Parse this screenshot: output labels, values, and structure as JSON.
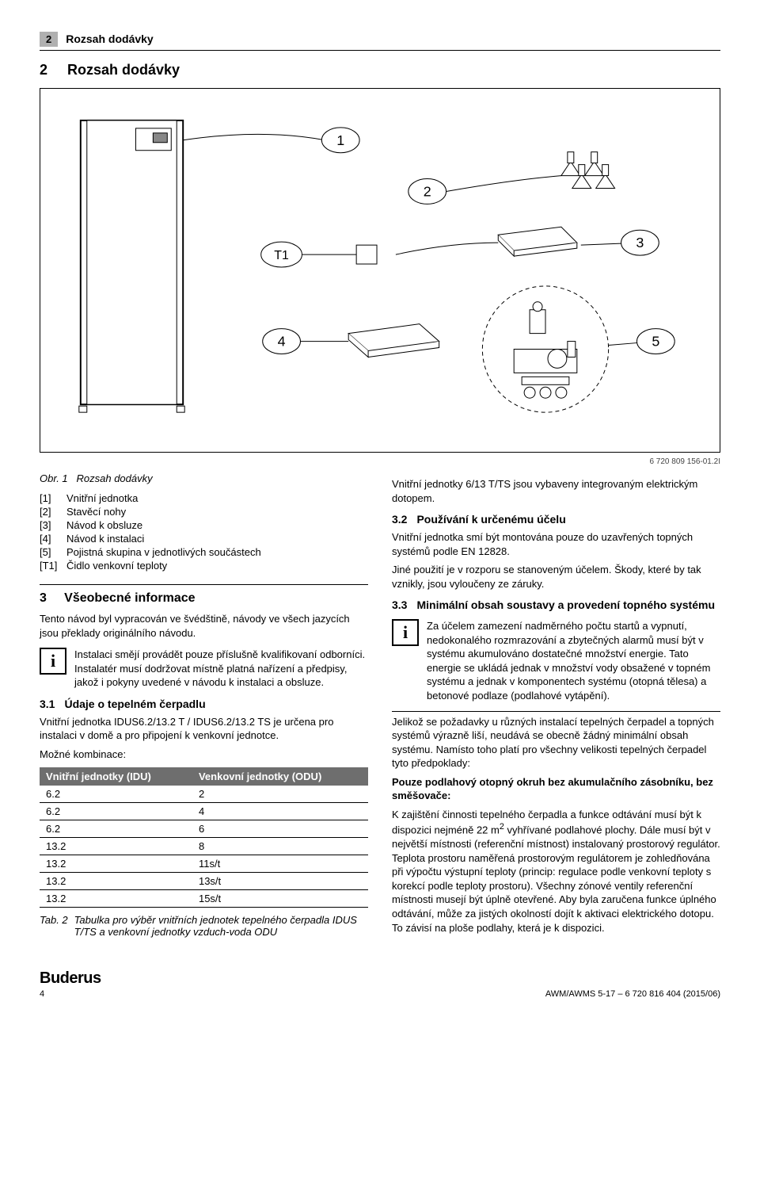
{
  "header": {
    "page_num": "2",
    "title": "Rozsah dodávky"
  },
  "section2": {
    "num": "2",
    "title": "Rozsah dodávky"
  },
  "figure": {
    "callouts": [
      "1",
      "2",
      "3",
      "4",
      "5"
    ],
    "tag": "T1",
    "ref": "6 720 809 156-01.2I",
    "caption_num": "Obr. 1",
    "caption": "Rozsah dodávky"
  },
  "legend": [
    {
      "k": "[1]",
      "v": "Vnitřní jednotka"
    },
    {
      "k": "[2]",
      "v": "Stavěcí nohy"
    },
    {
      "k": "[3]",
      "v": "Návod k obsluze"
    },
    {
      "k": "[4]",
      "v": "Návod k instalaci"
    },
    {
      "k": "[5]",
      "v": "Pojistná skupina v jednotlivých součástech"
    },
    {
      "k": "[T1]",
      "v": "Čidlo venkovní teploty"
    }
  ],
  "section3": {
    "num": "3",
    "title": "Všeobecné informace",
    "intro": "Tento návod byl vypracován ve švédštině, návody ve všech jazycích jsou překlady originálního návodu.",
    "info1": "Instalaci smějí provádět pouze příslušně kvalifikovaní odborníci. Instalatér musí dodržovat místně platná nařízení a předpisy, jakož i pokyny uvedené v návodu k instalaci a obsluze."
  },
  "section3_1": {
    "num": "3.1",
    "title": "Údaje o tepelném čerpadlu",
    "para": "Vnitřní jednotka IDUS6.2/13.2 T / IDUS6.2/13.2 TS je určena pro instalaci v domě a pro připojení k venkovní jednotce.",
    "combo": "Možné kombinace:"
  },
  "table": {
    "head1": "Vnitřní jednotky (IDU)",
    "head2": "Venkovní jednotky (ODU)",
    "rows": [
      [
        "6.2",
        "2"
      ],
      [
        "6.2",
        "4"
      ],
      [
        "6.2",
        "6"
      ],
      [
        "13.2",
        "8"
      ],
      [
        "13.2",
        "11s/t"
      ],
      [
        "13.2",
        "13s/t"
      ],
      [
        "13.2",
        "15s/t"
      ]
    ],
    "caption_num": "Tab. 2",
    "caption": "Tabulka pro výběr vnitřních jednotek tepelného čerpadla IDUS T/TS a venkovní jednotky vzduch-voda ODU"
  },
  "right": {
    "p1": "Vnitřní jednotky 6/13 T/TS jsou vybaveny integrovaným elektrickým dotopem.",
    "s3_2_num": "3.2",
    "s3_2_title": "Používání k určenému účelu",
    "s3_2_p1": "Vnitřní jednotka smí být montována pouze do uzavřených topných systémů podle EN 12828.",
    "s3_2_p2": "Jiné použití je v rozporu se stanoveným účelem. Škody, které by tak vznikly, jsou vyloučeny ze záruky.",
    "s3_3_num": "3.3",
    "s3_3_title": "Minimální obsah soustavy a provedení topného systému",
    "info2": "Za účelem zamezení nadměrného počtu startů a vypnutí, nedokonalého rozmrazování a zbytečných alarmů musí být v systému akumulováno dostatečné množství energie. Tato energie se ukládá jednak v množství vody obsažené v topném systému a jednak v komponentech systému (otopná tělesa) a betonové podlaze (podlahové vytápění).",
    "p3": "Jelikož se požadavky u různých instalací tepelných čerpadel a topných systémů výrazně liší, neudává se obecně žádný minimální obsah systému. Namísto toho platí pro všechny velikosti tepelných čerpadel tyto předpoklady:",
    "bold1": "Pouze podlahový otopný okruh bez akumulačního zásobníku, bez směšovače:",
    "p4a": "K zajištění činnosti tepelného čerpadla a funkce odtávání musí být k dispozici nejméně 22 m",
    "p4sup": "2",
    "p4b": " vyhřívané podlahové plochy. Dále musí být v největší místnosti (referenční místnost) instalovaný prostorový regulátor. Teplota prostoru naměřená prostorovým regulátorem je zohledňována při výpočtu výstupní teploty (princip: regulace podle venkovní teploty s korekcí podle teploty prostoru). Všechny zónové ventily referenční místnosti musejí být úplně otevřené. Aby byla zaručena funkce úplného odtávání, může za jistých okolností dojít k aktivaci elektrického dotopu. To závisí na ploše podlahy, která je k dispozici."
  },
  "footer": {
    "brand": "Buderus",
    "left_num": "4",
    "right": "AWM/AWMS 5-17 – 6 720 816 404 (2015/06)"
  }
}
